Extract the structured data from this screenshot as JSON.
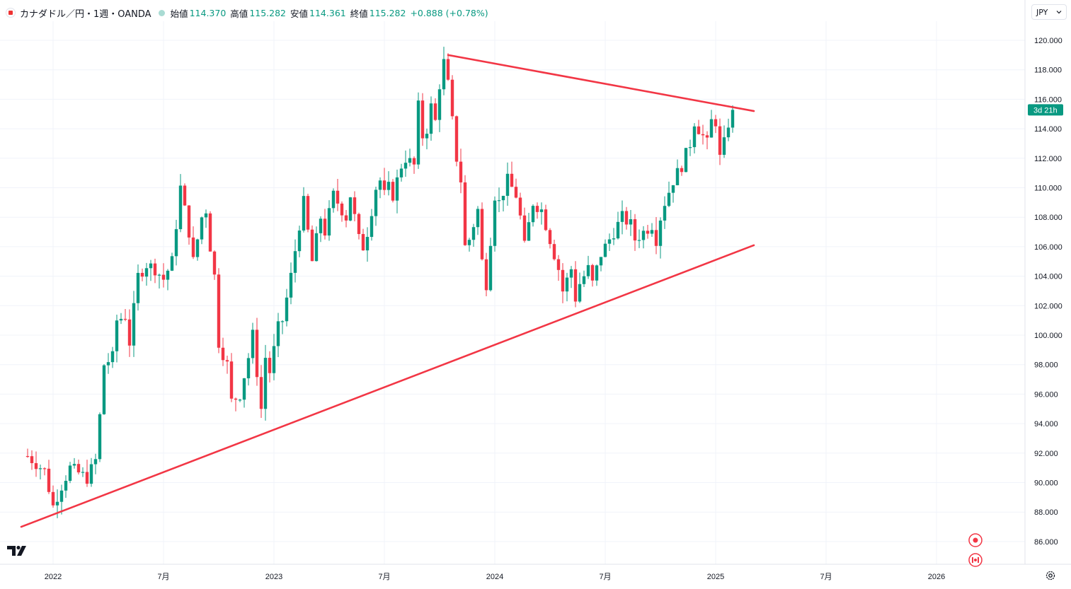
{
  "header": {
    "symbol": "カナダドル／円・1週・OANDA",
    "open_label": "始値",
    "open": "114.370",
    "high_label": "高値",
    "high": "115.282",
    "low_label": "安値",
    "low": "114.361",
    "close_label": "終値",
    "close": "115.282",
    "change": "+0.888 (+0.78%)"
  },
  "currency_button": {
    "label": "JPY",
    "icon": "chevron-down-icon"
  },
  "colors": {
    "up": "#089981",
    "down": "#f23645",
    "trendline": "#f23645",
    "grid": "#f0f3fa",
    "text": "#131722"
  },
  "chart_data": {
    "type": "candlestick",
    "title": "カナダドル／円 1週 OANDA",
    "ylim": [
      84.0,
      121.5
    ],
    "y_ticks": [
      "86.000",
      "88.000",
      "90.000",
      "92.000",
      "94.000",
      "96.000",
      "98.000",
      "100.000",
      "102.000",
      "104.000",
      "106.000",
      "108.000",
      "110.000",
      "112.000",
      "114.000",
      "116.000",
      "118.000",
      "120.000"
    ],
    "x_ticks": [
      {
        "label": "2022",
        "t": 0.0
      },
      {
        "label": "7月",
        "t": 26.0
      },
      {
        "label": "2023",
        "t": 52.0
      },
      {
        "label": "7月",
        "t": 78.0
      },
      {
        "label": "2024",
        "t": 104.0
      },
      {
        "label": "7月",
        "t": 130.0
      },
      {
        "label": "2025",
        "t": 156.0
      },
      {
        "label": "7月",
        "t": 182.0
      },
      {
        "label": "2026",
        "t": 208.0
      }
    ],
    "price_tag": {
      "label": "3d 21h",
      "value": 115.282
    },
    "keypoints": [
      {
        "t": -6,
        "v": 91.8
      },
      {
        "t": -2,
        "v": 90.8
      },
      {
        "t": 0,
        "v": 88.4
      },
      {
        "t": 2,
        "v": 89.8
      },
      {
        "t": 4,
        "v": 91.0
      },
      {
        "t": 8,
        "v": 90.3
      },
      {
        "t": 10,
        "v": 91.5
      },
      {
        "t": 11,
        "v": 94.5
      },
      {
        "t": 12,
        "v": 98.0
      },
      {
        "t": 14,
        "v": 98.5
      },
      {
        "t": 15,
        "v": 101.0
      },
      {
        "t": 17,
        "v": 101.3
      },
      {
        "t": 18,
        "v": 99.5
      },
      {
        "t": 20,
        "v": 104.0
      },
      {
        "t": 22,
        "v": 104.8
      },
      {
        "t": 24,
        "v": 104.5
      },
      {
        "t": 26,
        "v": 103.8
      },
      {
        "t": 28,
        "v": 105.0
      },
      {
        "t": 30,
        "v": 110.0
      },
      {
        "t": 32,
        "v": 107.0
      },
      {
        "t": 33,
        "v": 105.0
      },
      {
        "t": 35,
        "v": 108.0
      },
      {
        "t": 36,
        "v": 108.5
      },
      {
        "t": 37,
        "v": 106.0
      },
      {
        "t": 38,
        "v": 104.0
      },
      {
        "t": 39,
        "v": 99.5
      },
      {
        "t": 41,
        "v": 98.0
      },
      {
        "t": 42,
        "v": 95.5
      },
      {
        "t": 44,
        "v": 96.0
      },
      {
        "t": 46,
        "v": 98.5
      },
      {
        "t": 47,
        "v": 100.0
      },
      {
        "t": 48,
        "v": 97.5
      },
      {
        "t": 49,
        "v": 95.0
      },
      {
        "t": 50,
        "v": 98.5
      },
      {
        "t": 51,
        "v": 97.5
      },
      {
        "t": 53,
        "v": 100.5
      },
      {
        "t": 54,
        "v": 101.0
      },
      {
        "t": 56,
        "v": 104.0
      },
      {
        "t": 58,
        "v": 107.5
      },
      {
        "t": 59,
        "v": 109.0
      },
      {
        "t": 60,
        "v": 107.0
      },
      {
        "t": 61,
        "v": 105.0
      },
      {
        "t": 62,
        "v": 106.5
      },
      {
        "t": 63,
        "v": 108.0
      },
      {
        "t": 64,
        "v": 107.0
      },
      {
        "t": 66,
        "v": 109.5
      },
      {
        "t": 68,
        "v": 108.5
      },
      {
        "t": 69,
        "v": 108.0
      },
      {
        "t": 70,
        "v": 109.5
      },
      {
        "t": 71,
        "v": 108.0
      },
      {
        "t": 72,
        "v": 106.5
      },
      {
        "t": 73,
        "v": 106.0
      },
      {
        "t": 74,
        "v": 107.0
      },
      {
        "t": 76,
        "v": 110.0
      },
      {
        "t": 77,
        "v": 110.5
      },
      {
        "t": 78,
        "v": 109.5
      },
      {
        "t": 79,
        "v": 110.0
      },
      {
        "t": 80,
        "v": 109.5
      },
      {
        "t": 82,
        "v": 111.5
      },
      {
        "t": 83,
        "v": 112.0
      },
      {
        "t": 85,
        "v": 111.5
      },
      {
        "t": 86,
        "v": 115.5
      },
      {
        "t": 87,
        "v": 113.5
      },
      {
        "t": 88,
        "v": 114.0
      },
      {
        "t": 89,
        "v": 115.5
      },
      {
        "t": 90,
        "v": 114.5
      },
      {
        "t": 91,
        "v": 117.0
      },
      {
        "t": 92,
        "v": 118.5
      },
      {
        "t": 93,
        "v": 117.0
      },
      {
        "t": 94,
        "v": 114.5
      },
      {
        "t": 95,
        "v": 112.0
      },
      {
        "t": 96,
        "v": 110.5
      },
      {
        "t": 97,
        "v": 106.0
      },
      {
        "t": 98,
        "v": 106.5
      },
      {
        "t": 99,
        "v": 107.5
      },
      {
        "t": 100,
        "v": 108.5
      },
      {
        "t": 101,
        "v": 105.0
      },
      {
        "t": 102,
        "v": 103.5
      },
      {
        "t": 103,
        "v": 106.5
      },
      {
        "t": 104,
        "v": 109.5
      },
      {
        "t": 105,
        "v": 109.0
      },
      {
        "t": 107,
        "v": 110.5
      },
      {
        "t": 109,
        "v": 109.5
      },
      {
        "t": 110,
        "v": 108.0
      },
      {
        "t": 111,
        "v": 106.0
      },
      {
        "t": 113,
        "v": 109.0
      },
      {
        "t": 115,
        "v": 108.5
      },
      {
        "t": 116,
        "v": 107.5
      },
      {
        "t": 117,
        "v": 106.5
      },
      {
        "t": 118,
        "v": 105.5
      },
      {
        "t": 119,
        "v": 104.5
      },
      {
        "t": 120,
        "v": 103.0
      },
      {
        "t": 122,
        "v": 104.5
      },
      {
        "t": 123,
        "v": 102.5
      },
      {
        "t": 124,
        "v": 103.5
      },
      {
        "t": 126,
        "v": 104.5
      },
      {
        "t": 127,
        "v": 103.5
      },
      {
        "t": 129,
        "v": 105.5
      },
      {
        "t": 130,
        "v": 106.0
      },
      {
        "t": 131,
        "v": 106.5
      },
      {
        "t": 133,
        "v": 107.5
      },
      {
        "t": 134,
        "v": 108.0
      },
      {
        "t": 136,
        "v": 107.5
      },
      {
        "t": 137,
        "v": 106.5
      },
      {
        "t": 139,
        "v": 107.0
      },
      {
        "t": 141,
        "v": 107.5
      },
      {
        "t": 142,
        "v": 106.5
      },
      {
        "t": 143,
        "v": 108.0
      },
      {
        "t": 144,
        "v": 109.0
      },
      {
        "t": 146,
        "v": 110.5
      },
      {
        "t": 148,
        "v": 111.5
      },
      {
        "t": 150,
        "v": 113.0
      },
      {
        "t": 151,
        "v": 114.5
      },
      {
        "t": 152,
        "v": 114.0
      },
      {
        "t": 153,
        "v": 113.5
      },
      {
        "t": 154,
        "v": 113.0
      },
      {
        "t": 155,
        "v": 114.5
      },
      {
        "t": 156,
        "v": 114.5
      },
      {
        "t": 157,
        "v": 112.0
      },
      {
        "t": 158,
        "v": 113.0
      },
      {
        "t": 159,
        "v": 114.37
      },
      {
        "t": 160,
        "v": 115.282
      }
    ],
    "trendlines": [
      {
        "name": "resistance",
        "from": {
          "t": 93.0,
          "v": 119.0
        },
        "to": {
          "t": 165.0,
          "v": 115.2
        }
      },
      {
        "name": "support",
        "from": {
          "t": -7.5,
          "v": 87.0
        },
        "to": {
          "t": 165.0,
          "v": 106.1
        }
      }
    ]
  }
}
